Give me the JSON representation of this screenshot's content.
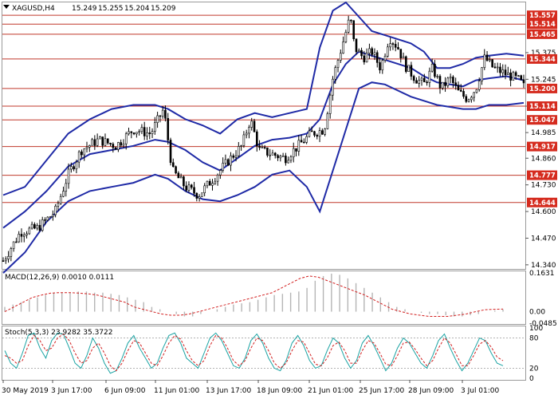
{
  "chart_data": [
    {
      "type": "candlestick",
      "header": {
        "symbol": "XAGUSD,H4",
        "o": "15.249",
        "h": "15.255",
        "l": "15.204",
        "c": "15.209"
      },
      "ylim": [
        14.32,
        15.62
      ],
      "y_ticks": [
        "15.375",
        "15.245",
        "15.114",
        "14.985",
        "14.860",
        "14.730",
        "14.600",
        "14.470",
        "14.340"
      ],
      "levels": [
        {
          "value": 15.557,
          "label": "15.557"
        },
        {
          "value": 15.514,
          "label": "15.514"
        },
        {
          "value": 15.465,
          "label": "15.465"
        },
        {
          "value": 15.344,
          "label": "15.344"
        },
        {
          "value": 15.2,
          "label": "15.200"
        },
        {
          "value": 15.114,
          "label": "15.114"
        },
        {
          "value": 15.047,
          "label": "15.047"
        },
        {
          "value": 14.917,
          "label": "14.917"
        },
        {
          "value": 14.777,
          "label": "14.777"
        },
        {
          "value": 14.644,
          "label": "14.644"
        }
      ],
      "x_labels": [
        "30 May 2019",
        "3 Jun 17:00",
        "6 Jun 09:00",
        "11 Jun 01:00",
        "13 Jun 17:00",
        "18 Jun 09:00",
        "21 Jun 01:00",
        "25 Jun 17:00",
        "28 Jun 09:00",
        "3 Jul 01:00"
      ],
      "close_path": [
        [
          0,
          14.36
        ],
        [
          4,
          14.5
        ],
        [
          8,
          14.52
        ],
        [
          12,
          14.6
        ],
        [
          15,
          14.78
        ],
        [
          18,
          14.9
        ],
        [
          22,
          14.95
        ],
        [
          26,
          14.92
        ],
        [
          30,
          15.0
        ],
        [
          34,
          14.98
        ],
        [
          37,
          15.1
        ],
        [
          39,
          14.8
        ],
        [
          42,
          14.72
        ],
        [
          45,
          14.68
        ],
        [
          48,
          14.75
        ],
        [
          52,
          14.85
        ],
        [
          55,
          14.92
        ],
        [
          57,
          15.05
        ],
        [
          59,
          14.9
        ],
        [
          62,
          14.88
        ],
        [
          65,
          14.86
        ],
        [
          68,
          14.92
        ],
        [
          71,
          14.98
        ],
        [
          74,
          15.0
        ],
        [
          76,
          15.25
        ],
        [
          78,
          15.4
        ],
        [
          80,
          15.55
        ],
        [
          81,
          15.4
        ],
        [
          83,
          15.35
        ],
        [
          85,
          15.38
        ],
        [
          87,
          15.3
        ],
        [
          89,
          15.45
        ],
        [
          91,
          15.4
        ],
        [
          93,
          15.3
        ],
        [
          95,
          15.25
        ],
        [
          97,
          15.22
        ],
        [
          99,
          15.3
        ],
        [
          101,
          15.2
        ],
        [
          103,
          15.25
        ],
        [
          105,
          15.18
        ],
        [
          107,
          15.15
        ],
        [
          109,
          15.2
        ],
        [
          111,
          15.35
        ],
        [
          113,
          15.3
        ],
        [
          115,
          15.28
        ],
        [
          117,
          15.26
        ],
        [
          119,
          15.24
        ],
        [
          120,
          15.21
        ]
      ],
      "bands": {
        "upper": [
          [
            0,
            14.68
          ],
          [
            5,
            14.72
          ],
          [
            10,
            14.85
          ],
          [
            15,
            14.98
          ],
          [
            20,
            15.05
          ],
          [
            25,
            15.1
          ],
          [
            30,
            15.12
          ],
          [
            35,
            15.12
          ],
          [
            38,
            15.1
          ],
          [
            42,
            15.05
          ],
          [
            46,
            15.02
          ],
          [
            50,
            14.98
          ],
          [
            54,
            15.05
          ],
          [
            58,
            15.08
          ],
          [
            62,
            15.06
          ],
          [
            66,
            15.08
          ],
          [
            70,
            15.1
          ],
          [
            73,
            15.4
          ],
          [
            76,
            15.58
          ],
          [
            79,
            15.62
          ],
          [
            82,
            15.55
          ],
          [
            85,
            15.48
          ],
          [
            88,
            15.46
          ],
          [
            91,
            15.44
          ],
          [
            94,
            15.42
          ],
          [
            97,
            15.38
          ],
          [
            100,
            15.3
          ],
          [
            103,
            15.3
          ],
          [
            106,
            15.32
          ],
          [
            109,
            15.35
          ],
          [
            112,
            15.36
          ],
          [
            116,
            15.37
          ],
          [
            120,
            15.36
          ]
        ],
        "middle": [
          [
            0,
            14.52
          ],
          [
            5,
            14.6
          ],
          [
            10,
            14.7
          ],
          [
            15,
            14.82
          ],
          [
            20,
            14.88
          ],
          [
            25,
            14.9
          ],
          [
            30,
            14.92
          ],
          [
            35,
            14.95
          ],
          [
            38,
            14.94
          ],
          [
            42,
            14.9
          ],
          [
            46,
            14.84
          ],
          [
            50,
            14.8
          ],
          [
            54,
            14.86
          ],
          [
            58,
            14.92
          ],
          [
            62,
            14.95
          ],
          [
            66,
            14.96
          ],
          [
            70,
            14.98
          ],
          [
            73,
            15.05
          ],
          [
            76,
            15.22
          ],
          [
            79,
            15.32
          ],
          [
            82,
            15.38
          ],
          [
            85,
            15.36
          ],
          [
            88,
            15.34
          ],
          [
            91,
            15.32
          ],
          [
            94,
            15.3
          ],
          [
            97,
            15.26
          ],
          [
            100,
            15.23
          ],
          [
            103,
            15.22
          ],
          [
            106,
            15.21
          ],
          [
            109,
            15.24
          ],
          [
            112,
            15.25
          ],
          [
            116,
            15.26
          ],
          [
            120,
            15.24
          ]
        ],
        "lower": [
          [
            0,
            14.3
          ],
          [
            5,
            14.4
          ],
          [
            10,
            14.55
          ],
          [
            15,
            14.65
          ],
          [
            20,
            14.7
          ],
          [
            25,
            14.72
          ],
          [
            30,
            14.74
          ],
          [
            35,
            14.78
          ],
          [
            38,
            14.76
          ],
          [
            42,
            14.7
          ],
          [
            46,
            14.66
          ],
          [
            50,
            14.65
          ],
          [
            54,
            14.68
          ],
          [
            58,
            14.72
          ],
          [
            62,
            14.78
          ],
          [
            66,
            14.8
          ],
          [
            70,
            14.72
          ],
          [
            73,
            14.6
          ],
          [
            76,
            14.8
          ],
          [
            79,
            15.0
          ],
          [
            82,
            15.2
          ],
          [
            85,
            15.23
          ],
          [
            88,
            15.22
          ],
          [
            91,
            15.19
          ],
          [
            94,
            15.16
          ],
          [
            97,
            15.14
          ],
          [
            100,
            15.12
          ],
          [
            103,
            15.11
          ],
          [
            106,
            15.1
          ],
          [
            109,
            15.1
          ],
          [
            112,
            15.12
          ],
          [
            116,
            15.12
          ],
          [
            120,
            15.13
          ]
        ]
      }
    },
    {
      "type": "bar",
      "name": "MACD(12,26,9) 0.0010 0.0111",
      "ylim": [
        -0.0485,
        0.1631
      ],
      "y_ticks": [
        "0.1631",
        "0.00",
        "-0.0485"
      ],
      "histogram": [
        0.02,
        0.03,
        0.04,
        0.05,
        0.06,
        0.07,
        0.08,
        0.08,
        0.08,
        0.085,
        0.085,
        0.08,
        0.08,
        0.075,
        0.07,
        0.06,
        0.05,
        0.04,
        0.02,
        0.01,
        0.0,
        -0.01,
        -0.02,
        -0.02,
        -0.01,
        0.0,
        0.01,
        0.02,
        0.03,
        0.035,
        0.04,
        0.05,
        0.06,
        0.07,
        0.075,
        0.08,
        0.085,
        0.1,
        0.13,
        0.15,
        0.16,
        0.155,
        0.14,
        0.12,
        0.1,
        0.08,
        0.06,
        0.04,
        0.02,
        0.01,
        0.0,
        -0.005,
        -0.01,
        -0.01,
        -0.015,
        -0.02,
        -0.02,
        -0.015,
        -0.01,
        0.0,
        0.005,
        0.01
      ],
      "signal_line": [
        0.0,
        0.02,
        0.04,
        0.06,
        0.07,
        0.078,
        0.08,
        0.08,
        0.078,
        0.075,
        0.07,
        0.06,
        0.05,
        0.04,
        0.02,
        0.01,
        0.0,
        -0.01,
        -0.015,
        -0.015,
        -0.01,
        0.0,
        0.01,
        0.02,
        0.03,
        0.04,
        0.05,
        0.06,
        0.07,
        0.08,
        0.1,
        0.12,
        0.14,
        0.15,
        0.145,
        0.13,
        0.115,
        0.1,
        0.085,
        0.07,
        0.05,
        0.03,
        0.01,
        0.0,
        -0.01,
        -0.015,
        -0.02,
        -0.02,
        -0.02,
        -0.015,
        -0.01,
        0.0,
        0.008,
        0.01,
        0.011
      ]
    },
    {
      "type": "line",
      "name": "Stoch(5,3,3) 23.9282 35.3722",
      "ylim": [
        0,
        100
      ],
      "y_ticks": [
        "100",
        "80",
        "20",
        "0"
      ],
      "reference_lines": [
        80,
        20
      ],
      "k_line": [
        55,
        30,
        20,
        50,
        85,
        90,
        60,
        40,
        75,
        90,
        88,
        60,
        30,
        20,
        45,
        80,
        60,
        30,
        10,
        15,
        40,
        70,
        85,
        60,
        40,
        20,
        30,
        60,
        85,
        90,
        70,
        40,
        30,
        20,
        50,
        80,
        90,
        75,
        50,
        25,
        20,
        40,
        75,
        88,
        70,
        40,
        20,
        15,
        35,
        70,
        85,
        65,
        35,
        20,
        25,
        55,
        80,
        70,
        40,
        20,
        35,
        70,
        85,
        65,
        40,
        15,
        30,
        60,
        80,
        70,
        50,
        30,
        20,
        45,
        75,
        88,
        60,
        35,
        15,
        30,
        55,
        80,
        75,
        50,
        30,
        25
      ],
      "d_line": [
        45,
        40,
        30,
        35,
        65,
        85,
        75,
        55,
        60,
        80,
        88,
        75,
        50,
        30,
        35,
        60,
        70,
        50,
        25,
        15,
        30,
        55,
        75,
        70,
        50,
        30,
        25,
        45,
        70,
        85,
        78,
        55,
        35,
        25,
        35,
        65,
        85,
        80,
        60,
        35,
        25,
        35,
        60,
        80,
        75,
        55,
        30,
        20,
        30,
        55,
        75,
        72,
        50,
        28,
        25,
        40,
        65,
        72,
        55,
        30,
        30,
        55,
        75,
        70,
        50,
        28,
        25,
        45,
        70,
        72,
        58,
        40,
        25,
        35,
        60,
        80,
        70,
        48,
        25,
        25,
        45,
        68,
        75,
        62,
        42,
        35
      ]
    }
  ]
}
